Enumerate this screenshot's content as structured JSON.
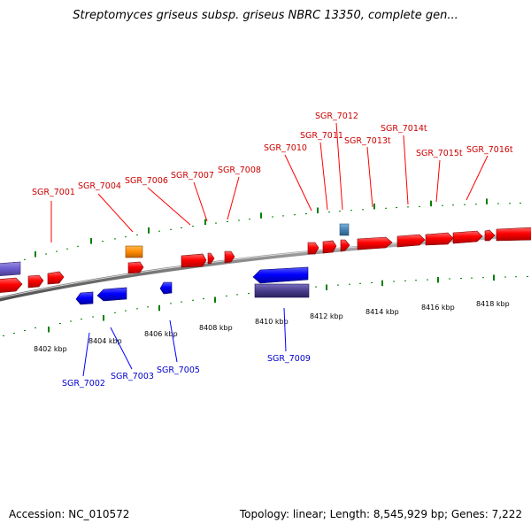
{
  "title": "Streptomyces griseus subsp. griseus NBRC 13350, complete gen...",
  "footer": {
    "accession": "Accession: NC_010572",
    "info": "Topology: linear; Length: 8,545,929 bp; Genes: 7,222"
  },
  "colors": {
    "forward_gene": "#ff0000",
    "reverse_gene": "#0000ff",
    "forward_label": "#cc0000",
    "reverse_label": "#0000cc",
    "highlight_orange": "#ff8c00",
    "highlight_steel": "#4682b4",
    "backbone": "#808080",
    "ruler_ticks": "#008000"
  },
  "scale_labels": [
    "8402 kbp",
    "8404 kbp",
    "8406 kbp",
    "8408 kbp",
    "8410 kbp",
    "8412 kbp",
    "8414 kbp",
    "8416 kbp",
    "8418 kbp"
  ],
  "forward_labels": [
    "SGR_7001",
    "SGR_7004",
    "SGR_7006",
    "SGR_7007",
    "SGR_7008",
    "SGR_7010",
    "SGR_7011",
    "SGR_7012",
    "SGR_7013t",
    "SGR_7014t",
    "SGR_7015t",
    "SGR_7016t"
  ],
  "reverse_labels": [
    "SGR_7002",
    "SGR_7003",
    "SGR_7005",
    "SGR_7009"
  ]
}
